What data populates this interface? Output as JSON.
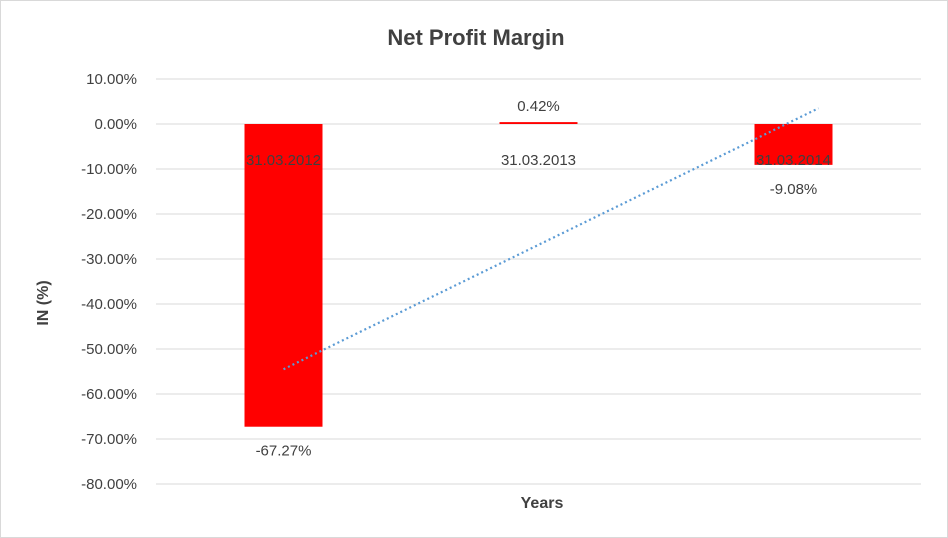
{
  "chart_data": {
    "type": "bar",
    "title": "Net Profit Margin",
    "xlabel": "Years",
    "ylabel": "IN (%)",
    "categories": [
      "31.03.2012",
      "31.03.2013",
      "31.03.2014"
    ],
    "values": [
      -67.27,
      0.42,
      -9.08
    ],
    "data_labels": [
      "-67.27%",
      "0.42%",
      "-9.08%"
    ],
    "ylim": [
      -80,
      10
    ],
    "y_ticks": [
      10,
      0,
      -10,
      -20,
      -30,
      -40,
      -50,
      -60,
      -70,
      -80
    ],
    "y_tick_labels": [
      "10.00%",
      "0.00%",
      "-10.00%",
      "-20.00%",
      "-30.00%",
      "-40.00%",
      "-50.00%",
      "-60.00%",
      "-70.00%",
      "-80.00%"
    ],
    "grid": true,
    "legend": "none",
    "trendline": {
      "type": "linear",
      "style": "dotted",
      "start_value": -54.5,
      "end_value": 3.5
    },
    "colors": {
      "bar": "#ff0000",
      "trendline": "#5b9bd5",
      "grid": "#d9d9d9",
      "text": "#404040"
    }
  }
}
